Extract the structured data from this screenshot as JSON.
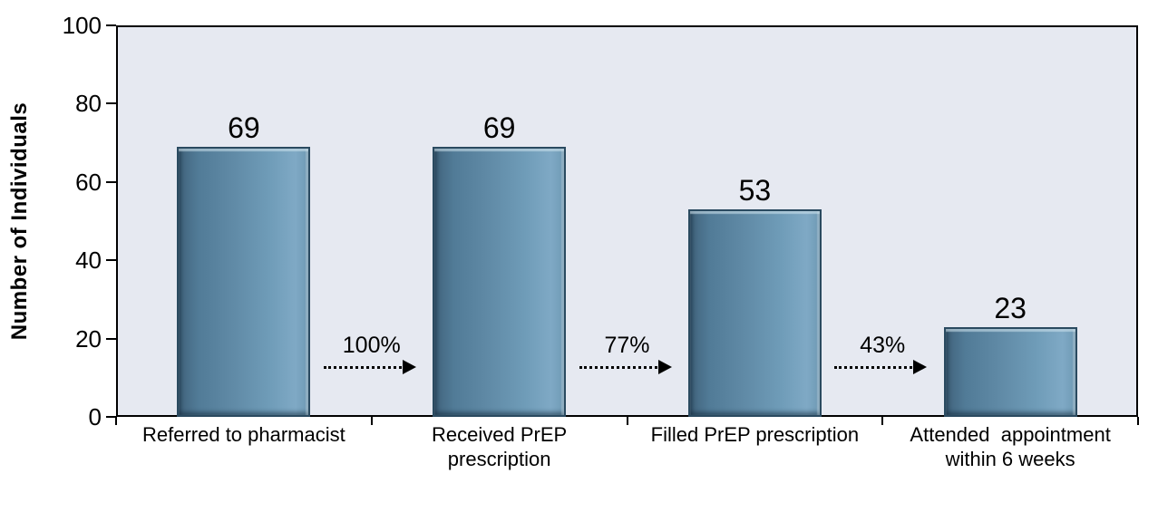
{
  "colors": {
    "figure_background": "#ffffff",
    "plot_background": "#e6e9f1",
    "bar_fill_dark": "#41637c",
    "bar_fill_light": "#7fa9c5",
    "bar_border": "#2a4a60",
    "axis": "#000000",
    "text": "#000000"
  },
  "chart_data": {
    "type": "bar",
    "title": "",
    "xlabel": "",
    "ylabel": "Number of Individuals",
    "ylim": [
      0,
      100
    ],
    "yticks": [
      0,
      20,
      40,
      60,
      80,
      100
    ],
    "grid": false,
    "legend": false,
    "categories": [
      "Referred to pharmacist",
      "Received PrEP\nprescription",
      "Filled PrEP prescription",
      "Attended  appointment\nwithin 6 weeks"
    ],
    "values": [
      69,
      69,
      53,
      23
    ],
    "bar_value_labels": [
      "69",
      "69",
      "53",
      "23"
    ],
    "transition_labels": [
      "100%",
      "77%",
      "43%"
    ]
  }
}
